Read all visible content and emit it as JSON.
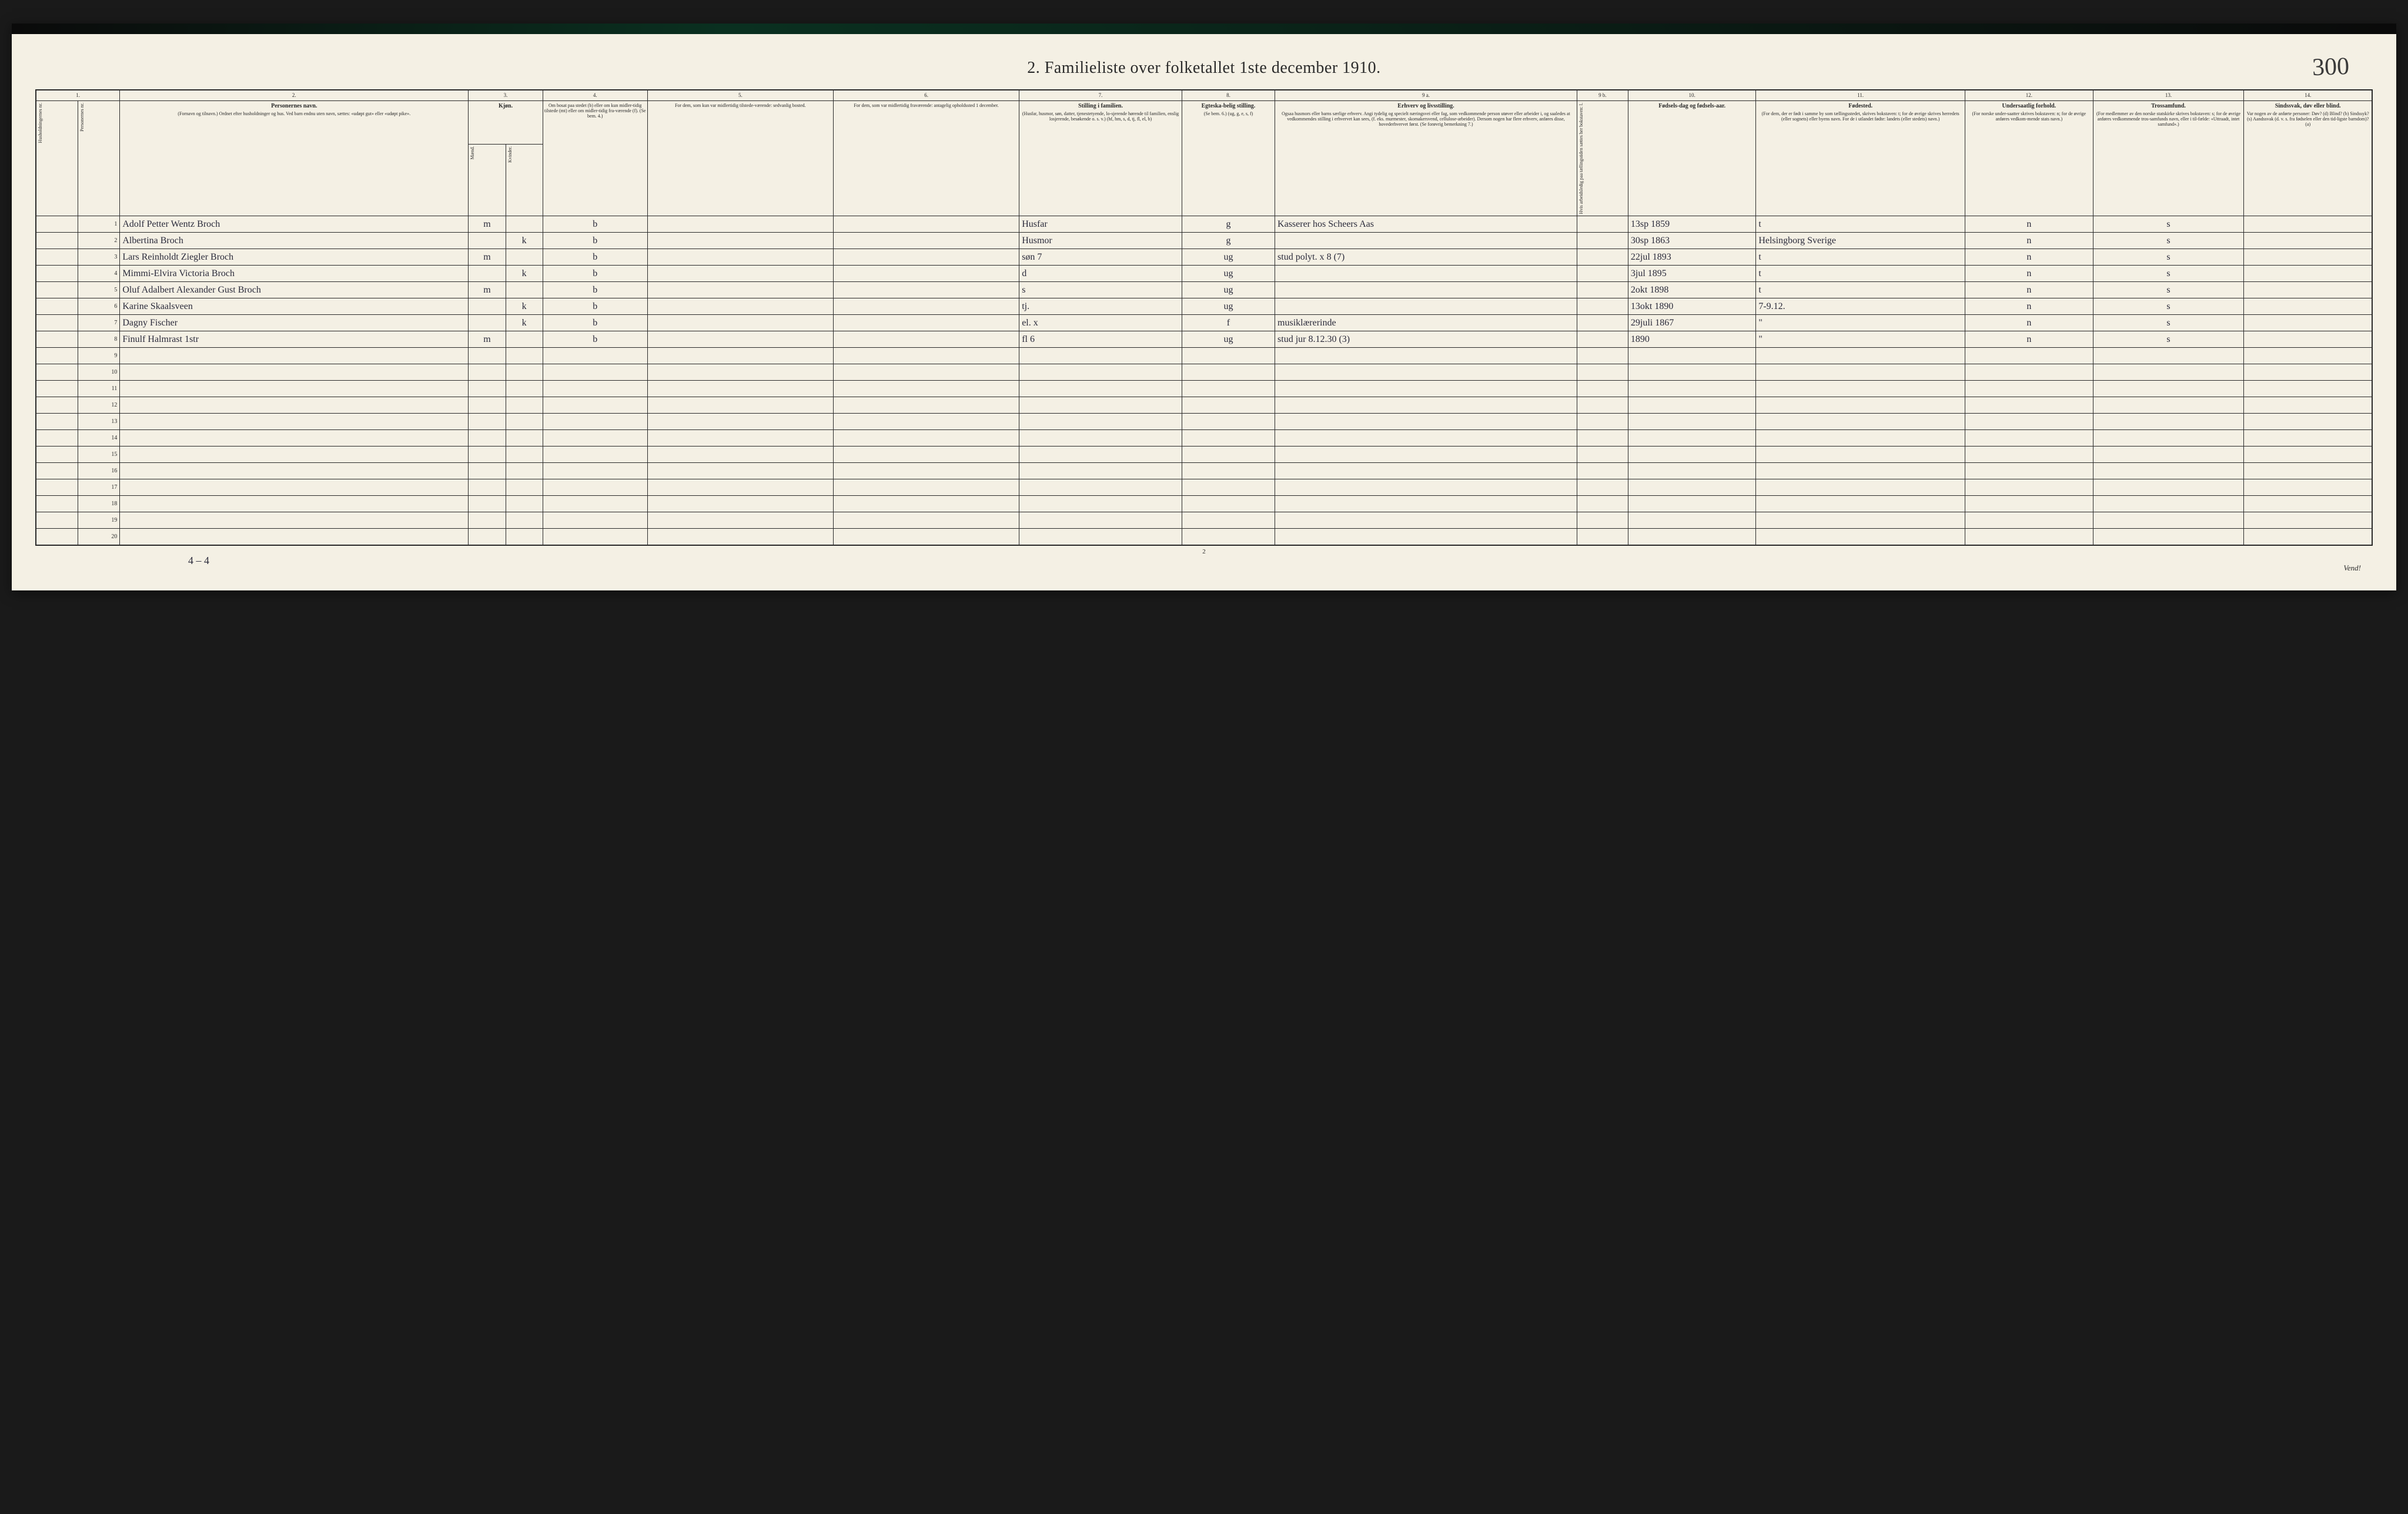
{
  "page_number_handwritten": "300",
  "title": "2.  Familieliste over folketallet 1ste december 1910.",
  "footer_page": "2",
  "vend_text": "Vend!",
  "bottom_note": "4 – 4",
  "col_numbers": [
    "1.",
    "",
    "2.",
    "3.",
    "",
    "4.",
    "5.",
    "6.",
    "7.",
    "8.",
    "9 a.",
    "9 b.",
    "10.",
    "11.",
    "12.",
    "13.",
    "14."
  ],
  "headers": {
    "c1": {
      "main": "",
      "sub": "Husholdningernes nr."
    },
    "c2": {
      "main": "",
      "sub": "Personernes nr."
    },
    "c3": {
      "main": "Personernes navn.",
      "sub": "(Fornavn og tilnavn.)\nOrdnet efter husholdninger og hus.\nVed barn endnu uten navn, sættes: «udøpt gut» eller «udøpt pike»."
    },
    "c4a": {
      "main": "Kjøn.",
      "sub": "Mænd."
    },
    "c4b": {
      "main": "",
      "sub": "Kvinder."
    },
    "c5": {
      "main": "",
      "sub": "Om bosat paa stedet (b) eller om kun midler-tidig tilstede (mt) eller om midler-tidig fra-værende (f). (Se bem. 4.)"
    },
    "c6": {
      "main": "",
      "sub": "For dem, som kun var midlertidig tilstede-værende:\nsedvanlig bosted."
    },
    "c7": {
      "main": "",
      "sub": "For dem, som var midlertidig fraværende:\nantagelig opholdssted 1 december."
    },
    "c8": {
      "main": "Stilling i familien.",
      "sub": "(Husfar, husmor, søn, datter, tjenestetyende, lo-sjerende hørende til familien, enslig losjerende, besøkende o. s. v.)\n(hf, hm, s, d, tj, fl, el, b)"
    },
    "c9": {
      "main": "Egteska-belig stilling.",
      "sub": "(Se bem. 6.)\n(ug, g, e, s, f)"
    },
    "c10": {
      "main": "Erhverv og livsstilling.",
      "sub": "Ogsaa husmors eller barns særlige erhverv. Angi tydelig og specielt næringsvei eller fag, som vedkommende person utøver eller arbeider i, og saaledes at vedkommendes stilling i erhvervet kan sees, (f. eks. murmester, skomakersvend, cellulose-arbeider). Dersom nogen har flere erhverv, anføres disse, hovederhvervet først.\n(Se forøvrig bemerkning 7.)"
    },
    "c10b": {
      "main": "",
      "sub": "Hvis arbeidsledig paa tællingstiden sættes her bokstaven: l."
    },
    "c11": {
      "main": "Fødsels-dag og fødsels-aar.",
      "sub": ""
    },
    "c12": {
      "main": "Fødested.",
      "sub": "(For dem, der er født i samme by som tællingsstedet, skrives bokstaven: t; for de øvrige skrives herredets (eller sognets) eller byens navn. For de i utlandet fødte: landets (eller stedets) navn.)"
    },
    "c13": {
      "main": "Undersaatlig forhold.",
      "sub": "(For norske under-saatter skrives bokstaven: n; for de øvrige anføres vedkom-mende stats navn.)"
    },
    "c14": {
      "main": "Trossamfund.",
      "sub": "(For medlemmer av den norske statskirke skrives bokstaven: s; for de øvrige anføres vedkommende tros-samfunds navn, eller i til-fælde: «Uttraadt, intet samfund».)"
    },
    "c15": {
      "main": "Sindssvak, døv eller blind.",
      "sub": "Var nogen av de anførte personer:\nDøv? (d)\nBlind? (b)\nSindssyk? (s)\nAandssvak (d. v. s. fra fødselen eller den tid-ligste barndom)? (a)"
    }
  },
  "mk_label": "m.  k.",
  "rows": [
    {
      "n": "1",
      "name": "Adolf Petter Wentz Broch",
      "sex_m": "m",
      "sex_k": "",
      "res": "b",
      "c6": "",
      "c7": "",
      "fam": "Husfar",
      "mar": "g",
      "occ": "Kasserer hos Scheers Aas",
      "bdate": "13sp 1859",
      "bplace": "t",
      "nat": "n",
      "rel": "s"
    },
    {
      "n": "2",
      "name": "Albertina Broch",
      "sex_m": "",
      "sex_k": "k",
      "res": "b",
      "c6": "",
      "c7": "",
      "fam": "Husmor",
      "mar": "g",
      "occ": "",
      "bdate": "30sp 1863",
      "bplace": "Helsingborg Sverige",
      "nat": "n",
      "rel": "s"
    },
    {
      "n": "3",
      "name": "Lars Reinholdt Ziegler Broch",
      "sex_m": "m",
      "sex_k": "",
      "res": "b",
      "c6": "",
      "c7": "",
      "fam": "søn    7",
      "mar": "ug",
      "occ": "stud polyt.  x 8 (7)",
      "bdate": "22jul 1893",
      "bplace": "t",
      "nat": "n",
      "rel": "s"
    },
    {
      "n": "4",
      "name": "Mimmi-Elvira Victoria Broch",
      "sex_m": "",
      "sex_k": "k",
      "res": "b",
      "c6": "",
      "c7": "",
      "fam": "d",
      "mar": "ug",
      "occ": "",
      "bdate": "3jul 1895",
      "bplace": "t",
      "nat": "n",
      "rel": "s"
    },
    {
      "n": "5",
      "name": "Oluf Adalbert Alexander Gust Broch",
      "sex_m": "m",
      "sex_k": "",
      "res": "b",
      "c6": "",
      "c7": "",
      "fam": "s",
      "mar": "ug",
      "occ": "",
      "bdate": "2okt 1898",
      "bplace": "t",
      "nat": "n",
      "rel": "s"
    },
    {
      "n": "6",
      "name": "Karine Skaalsveen",
      "sex_m": "",
      "sex_k": "k",
      "res": "b",
      "c6": "",
      "c7": "",
      "fam": "tj.",
      "mar": "ug",
      "occ": "",
      "bdate": "13okt 1890",
      "bplace": "7-9.12.",
      "nat": "n",
      "rel": "s"
    },
    {
      "n": "7",
      "name": "Dagny Fischer",
      "sex_m": "",
      "sex_k": "k",
      "res": "b",
      "c6": "",
      "c7": "",
      "fam": "el.  x",
      "mar": "f",
      "occ": "musiklærerinde",
      "bdate": "29juli 1867",
      "bplace": "\"",
      "nat": "n",
      "rel": "s"
    },
    {
      "n": "8",
      "name": "Finulf Halmrast  1str",
      "sex_m": "m",
      "sex_k": "",
      "res": "b",
      "c6": "",
      "c7": "",
      "fam": "fl     6",
      "mar": "ug",
      "occ": "stud jur 8.12.30 (3)",
      "bdate": "     1890",
      "bplace": "\"",
      "nat": "n",
      "rel": "s"
    }
  ],
  "empty_row_count": 12,
  "colors": {
    "paper": "#f4f0e4",
    "ink": "#2a2a2a",
    "handwriting": "#2a2a3a",
    "background": "#1a1a1a"
  }
}
